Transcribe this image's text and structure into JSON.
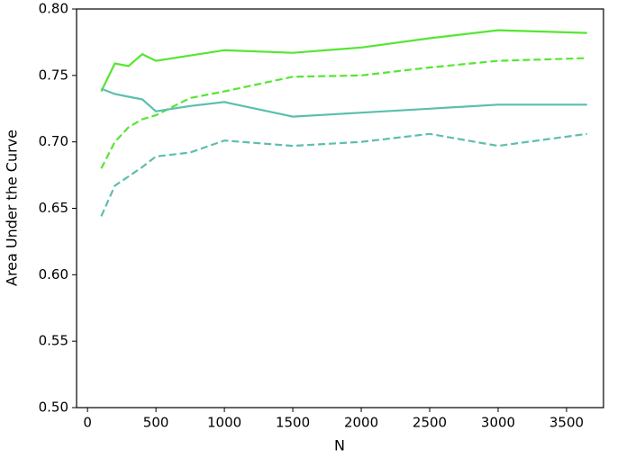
{
  "chart_data": {
    "type": "line",
    "xlabel": "N",
    "ylabel": "Area Under the Curve",
    "x": [
      100,
      200,
      300,
      400,
      500,
      750,
      1000,
      1500,
      2000,
      2500,
      3000,
      3650
    ],
    "series": [
      {
        "color": "#55e632",
        "dash": "solid",
        "values": [
          0.738,
          0.759,
          0.757,
          0.766,
          0.761,
          0.765,
          0.769,
          0.767,
          0.771,
          0.778,
          0.784,
          0.782
        ]
      },
      {
        "color": "#55e632",
        "dash": "dashed",
        "values": [
          0.68,
          0.7,
          0.711,
          0.717,
          0.72,
          0.733,
          0.738,
          0.749,
          0.75,
          0.756,
          0.761,
          0.763
        ]
      },
      {
        "color": "#5bbfad",
        "dash": "solid",
        "values": [
          0.74,
          0.736,
          0.734,
          0.732,
          0.723,
          0.727,
          0.73,
          0.719,
          0.722,
          0.725,
          0.728,
          0.728
        ]
      },
      {
        "color": "#5bbfad",
        "dash": "dashed",
        "values": [
          0.644,
          0.667,
          0.674,
          0.681,
          0.689,
          0.692,
          0.701,
          0.697,
          0.7,
          0.706,
          0.697,
          0.706
        ]
      }
    ],
    "xlim": [
      -80,
      3770
    ],
    "ylim": [
      0.5,
      0.8
    ],
    "xticks": [
      0,
      500,
      1000,
      1500,
      2000,
      2500,
      3000,
      3500
    ],
    "yticks": [
      {
        "value": 0.5,
        "label": "0.50"
      },
      0.55,
      {
        "value": 0.6,
        "label": "0.60"
      },
      0.65,
      {
        "value": 0.7,
        "label": "0.70"
      },
      0.75,
      {
        "value": 0.8,
        "label": "0.80"
      }
    ],
    "grid": false
  }
}
